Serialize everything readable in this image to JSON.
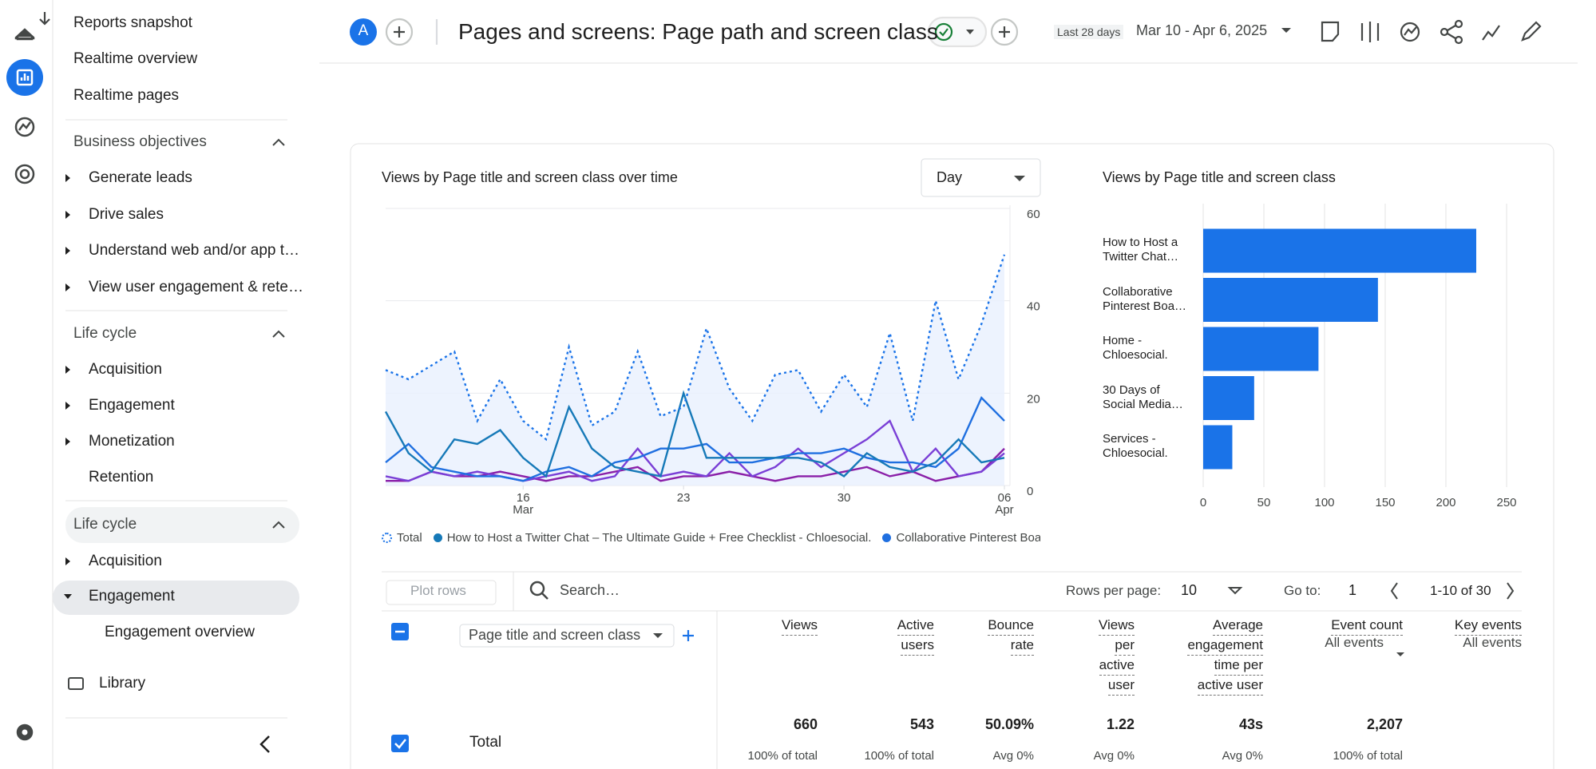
{
  "sidebar": {
    "top": [
      "Reports snapshot",
      "Realtime overview",
      "Realtime pages"
    ],
    "sections": [
      {
        "title": "Business objectives",
        "items": [
          "Generate leads",
          "Drive sales",
          "Understand web and/or app t…",
          "View user engagement & rete…"
        ]
      },
      {
        "title": "Life cycle",
        "items": [
          "Acquisition",
          "Engagement",
          "Monetization",
          "Retention"
        ]
      },
      {
        "title": "Life cycle",
        "items": [
          "Acquisition",
          "Engagement"
        ],
        "sub": [
          "Engagement overview"
        ]
      }
    ],
    "library": "Library"
  },
  "header": {
    "avatar": "A",
    "title": "Pages and screens: Page path and screen class",
    "range_label": "Last 28 days",
    "range": "Mar 10 - Apr 6, 2025"
  },
  "chart_data": [
    {
      "type": "line",
      "title": "Views by Page title and screen class over time",
      "granularity": "Day",
      "categories": [
        "10 Mar",
        "11 Mar",
        "12 Mar",
        "13 Mar",
        "14 Mar",
        "15 Mar",
        "16 Mar",
        "17 Mar",
        "18 Mar",
        "19 Mar",
        "20 Mar",
        "21 Mar",
        "22 Mar",
        "23 Mar",
        "24 Mar",
        "25 Mar",
        "26 Mar",
        "27 Mar",
        "28 Mar",
        "29 Mar",
        "30 Mar",
        "31 Mar",
        "01 Apr",
        "02 Apr",
        "03 Apr",
        "04 Apr",
        "05 Apr",
        "06 Apr"
      ],
      "xticks": [
        {
          "value": "16 Mar",
          "label": "16",
          "month": "Mar"
        },
        {
          "value": "23 Mar",
          "label": "23"
        },
        {
          "value": "30 Mar",
          "label": "30"
        },
        {
          "value": "06 Apr",
          "label": "06",
          "month": "Apr"
        }
      ],
      "ylim": [
        0,
        60
      ],
      "yticks": [
        0,
        20,
        40,
        60
      ],
      "grid": true,
      "series": [
        {
          "name": "Total",
          "color": "#1a73e8",
          "dashed": true,
          "area": true,
          "values": [
            25,
            23,
            26,
            29,
            14,
            23,
            14,
            10,
            30,
            13,
            16,
            29,
            15,
            17,
            34,
            21,
            14,
            24,
            25,
            16,
            24,
            17,
            33,
            14,
            40,
            23,
            35,
            50
          ]
        },
        {
          "name": "How to Host a Twitter Chat – The Ultimate Guide + Free Checklist - Chloesocial.",
          "color": "#1679b8",
          "values": [
            16,
            7,
            3,
            10,
            9,
            12,
            6,
            2,
            17,
            8,
            4,
            3,
            2,
            20,
            6,
            6,
            6,
            6,
            6,
            5,
            2,
            7,
            4,
            3,
            5,
            10,
            5,
            6
          ]
        },
        {
          "name": "Collaborative Pinterest Boa",
          "color": "#1f6fe0",
          "values": [
            5,
            9,
            4,
            3,
            2,
            2,
            1,
            3,
            4,
            2,
            5,
            6,
            8,
            8,
            9,
            5,
            5,
            6,
            7,
            7,
            8,
            6,
            5,
            5,
            4,
            8,
            19,
            14
          ]
        },
        {
          "color": "#7a3fd6",
          "values": [
            2,
            1,
            3,
            2,
            3,
            2,
            1,
            2,
            3,
            1,
            2,
            8,
            2,
            3,
            2,
            7,
            2,
            4,
            8,
            4,
            7,
            10,
            14,
            3,
            8,
            2,
            3,
            7
          ]
        },
        {
          "color": "#8a1fa8",
          "values": [
            1,
            1,
            3,
            2,
            2,
            3,
            2,
            1,
            2,
            2,
            3,
            4,
            1,
            2,
            2,
            3,
            2,
            1,
            2,
            2,
            3,
            4,
            2,
            3,
            1,
            2,
            3,
            8
          ]
        }
      ]
    },
    {
      "type": "hbar",
      "title": "Views by Page title and screen class",
      "color": "#1a73e8",
      "categories": [
        "How to Host a\nTwitter Chat…",
        "Collaborative\nPinterest Boa…",
        "Home -\nChloesocial.",
        "30 Days of\nSocial Media…",
        "Services -\nChloesocial."
      ],
      "values": [
        225,
        144,
        95,
        42,
        24
      ],
      "xlim": [
        0,
        250
      ],
      "xticks": [
        0,
        50,
        100,
        150,
        200,
        250
      ],
      "grid": true
    }
  ],
  "table": {
    "plot_rows": "Plot rows",
    "search": "Search…",
    "rows_per_page_label": "Rows per page:",
    "rows_per_page": "10",
    "goto_label": "Go to:",
    "goto": "1",
    "pagination": "1-10 of 30",
    "dimension": "Page title and screen class",
    "total_label": "Total",
    "columns": [
      {
        "lines": [
          "Views"
        ],
        "sort": true,
        "total": "660",
        "sub": "100% of total"
      },
      {
        "lines": [
          "Active",
          "users"
        ],
        "total": "543",
        "sub": "100% of total"
      },
      {
        "lines": [
          "Bounce",
          "rate"
        ],
        "total": "50.09%",
        "sub": "Avg 0%"
      },
      {
        "lines": [
          "Views",
          "per",
          "active",
          "user"
        ],
        "total": "1.22",
        "sub": "Avg 0%"
      },
      {
        "lines": [
          "Average",
          "engagement",
          "time per",
          "active user"
        ],
        "total": "43s",
        "sub": "Avg 0%"
      },
      {
        "lines": [
          "Event count"
        ],
        "filter": "All events",
        "total": "2,207",
        "sub": "100% of total"
      },
      {
        "lines": [
          "Key events"
        ],
        "filter": "All events"
      }
    ]
  }
}
